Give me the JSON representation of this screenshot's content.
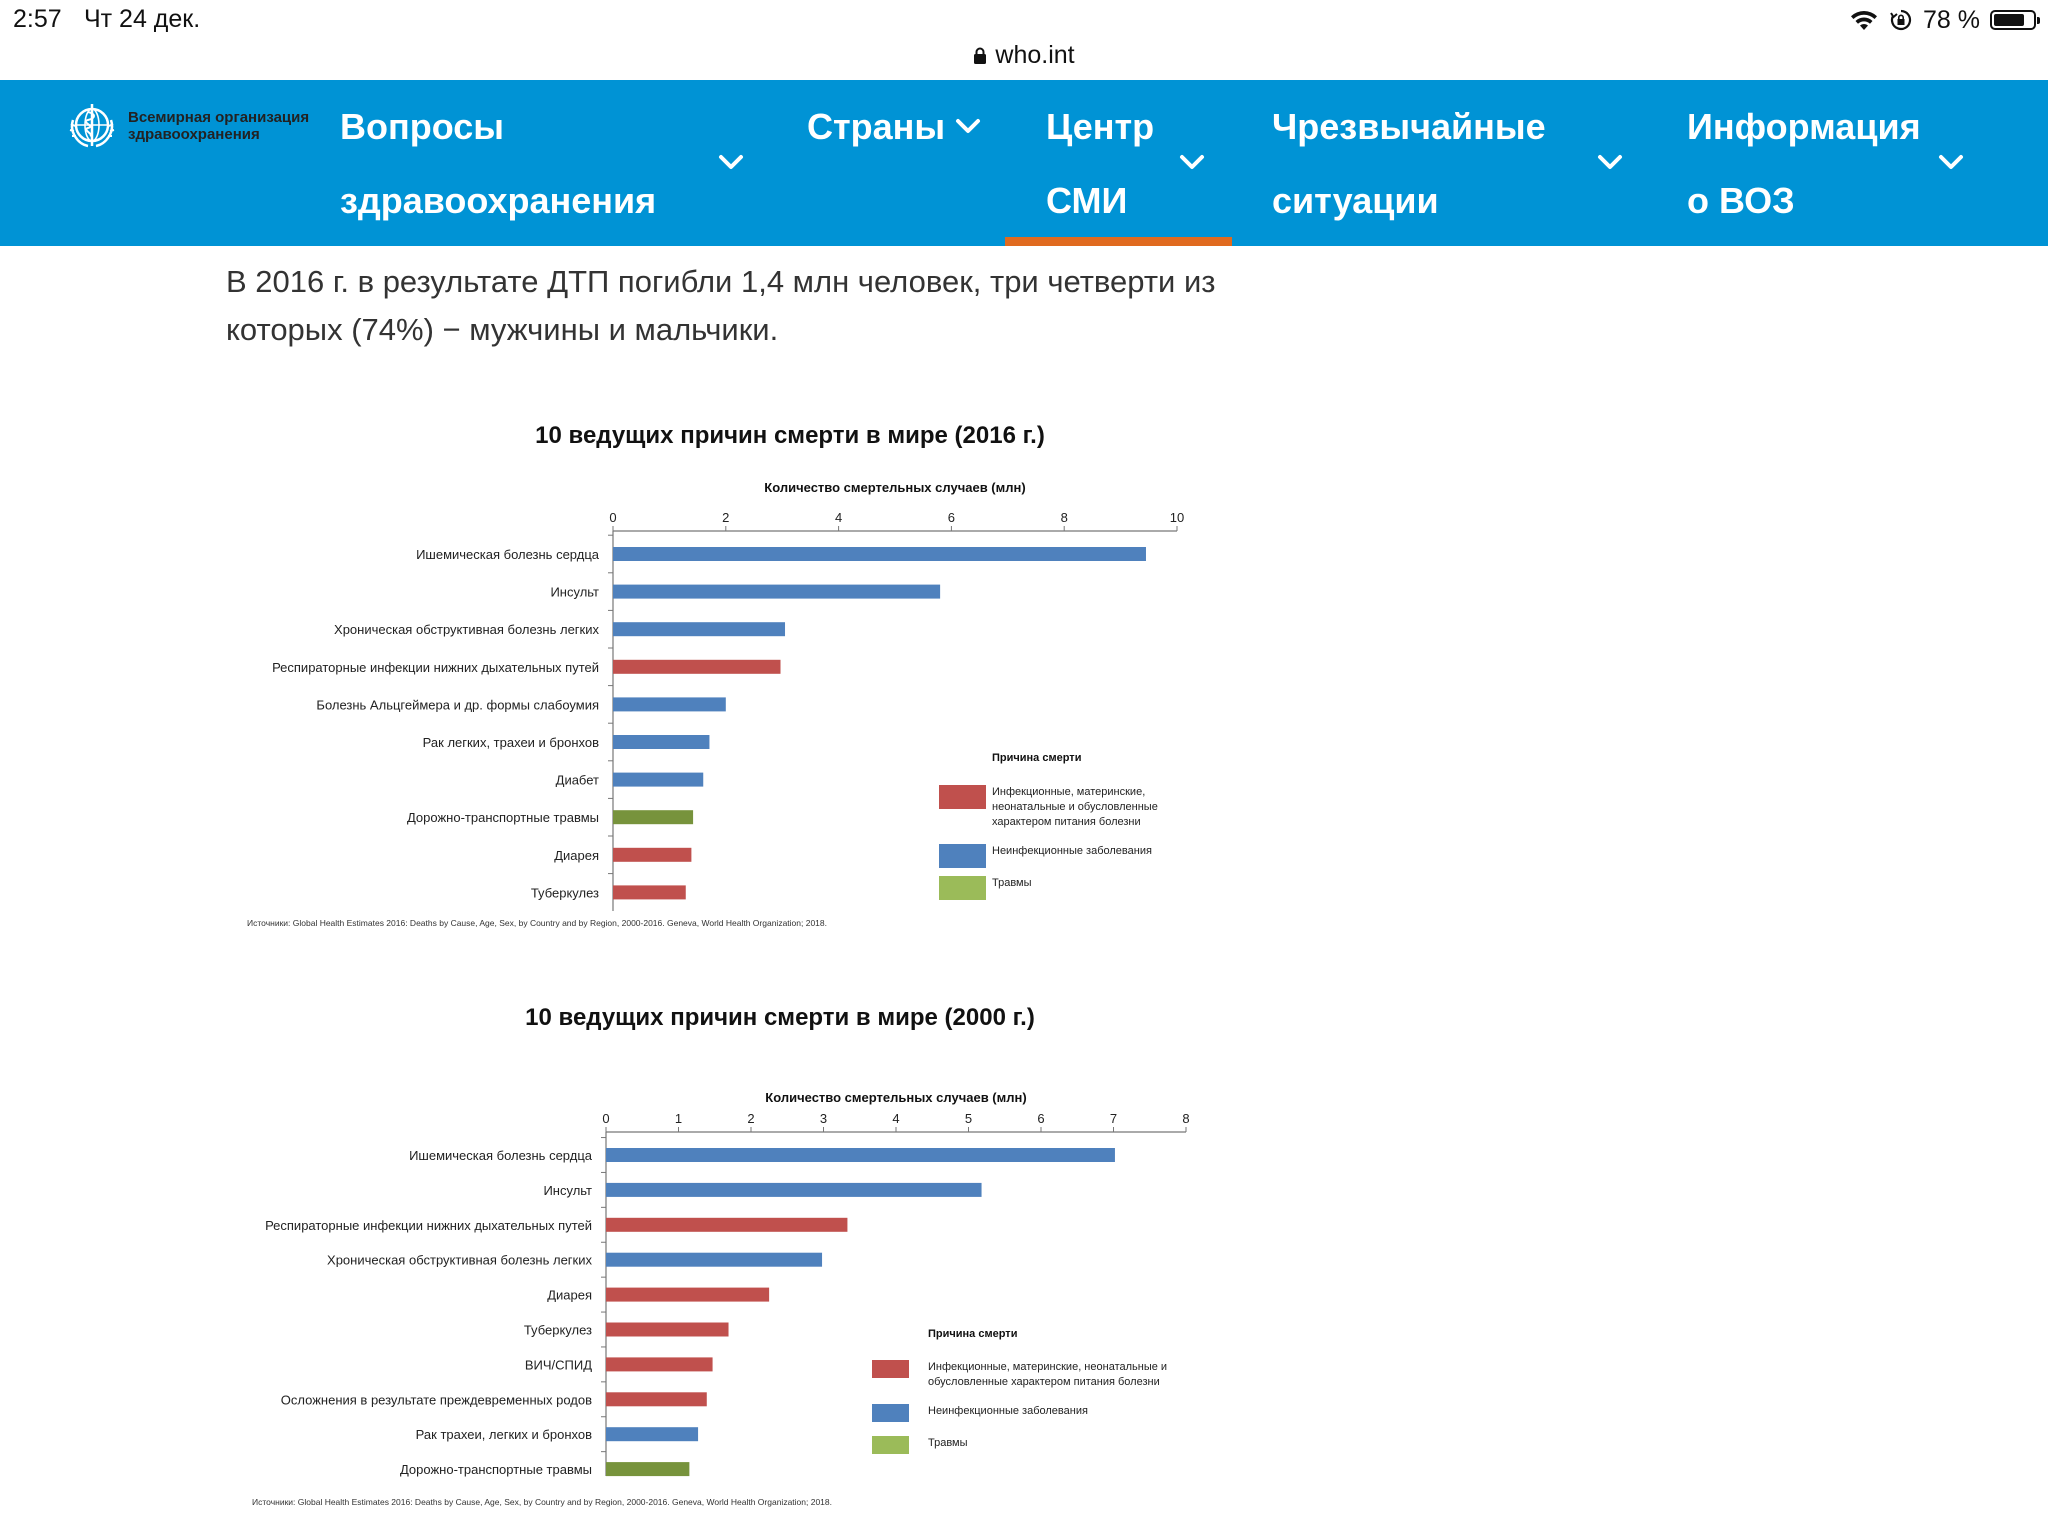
{
  "status_bar": {
    "time": "2:57",
    "date": "Чт 24 дек.",
    "battery": "78 %",
    "battery_level": 0.78
  },
  "url_bar": {
    "domain": "who.int"
  },
  "nav": {
    "logo_line1": "Всемирная организация",
    "logo_line2": "здравоохранения",
    "items": [
      {
        "line1": "Вопросы",
        "line2": "здравоохранения"
      },
      {
        "line1": "Страны",
        "line2": ""
      },
      {
        "line1": "Центр",
        "line2": "СМИ"
      },
      {
        "line1": "Чрезвычайные",
        "line2": "ситуации"
      },
      {
        "line1": "Информация",
        "line2": "о ВОЗ"
      }
    ],
    "active_index": 2
  },
  "intro": "В 2016 г. в результате ДТП погибли 1,4 млн человек, три четверти из которых (74%) − мужчины и мальчики.",
  "colors": {
    "infectious": "#c0504d",
    "noncommunicable": "#4f81bd",
    "injuries_2016": "#77933c",
    "injuries_legend": "#9bbb59",
    "nav_blue": "#0093d5",
    "active_orange": "#e06a1f"
  },
  "chart_data": [
    {
      "type": "bar",
      "orientation": "horizontal",
      "title": "10 ведущих причин смерти в мире (2016 г.)",
      "xlabel": "Количество смертельных случаев (млн)",
      "xlim": [
        0,
        10
      ],
      "ticks": [
        0,
        2,
        4,
        6,
        8,
        10
      ],
      "categories": [
        "Ишемическая болезнь сердца",
        "Инсульт",
        "Хроническая обструктивная болезнь легких",
        "Респираторные инфекции нижних дыхательных путей",
        "Болезнь Альцгеймера и др. формы слабоумия",
        "Рак легких, трахеи и бронхов",
        "Диабет",
        "Дорожно-транспортные травмы",
        "Диарея",
        "Туберкулез"
      ],
      "values": [
        9.45,
        5.8,
        3.05,
        2.97,
        2.0,
        1.71,
        1.6,
        1.42,
        1.39,
        1.29
      ],
      "groups": [
        "noncommunicable",
        "noncommunicable",
        "noncommunicable",
        "infectious",
        "noncommunicable",
        "noncommunicable",
        "noncommunicable",
        "injuries",
        "infectious",
        "infectious"
      ],
      "legend_title": "Причина смерти",
      "legend": [
        {
          "group": "infectious",
          "lines": [
            "Инфекционные, материнские,",
            "неонатальные и обусловленные",
            "характером питания болезни"
          ]
        },
        {
          "group": "noncommunicable",
          "lines": [
            "Неинфекционные заболевания"
          ]
        },
        {
          "group": "injuries",
          "lines": [
            "Травмы"
          ]
        }
      ],
      "source": "Источники: Global Health Estimates 2016: Deaths by Cause, Age, Sex, by Country and by Region, 2000-2016. Geneva, World Health Organization; 2018."
    },
    {
      "type": "bar",
      "orientation": "horizontal",
      "title": "10 ведущих причин смерти в мире (2000 г.)",
      "xlabel": "Количество смертельных случаев (млн)",
      "xlim": [
        0,
        8
      ],
      "ticks": [
        0,
        1,
        2,
        3,
        4,
        5,
        6,
        7,
        8
      ],
      "categories": [
        "Ишемическая болезнь сердца",
        "Инсульт",
        "Респираторные инфекции нижних дыхательных путей",
        "Хроническая обструктивная болезнь легких",
        "Диарея",
        "Туберкулез",
        "ВИЧ/СПИД",
        "Осложнения в результате преждевременных родов",
        "Рак трахеи, легких и бронхов",
        "Дорожно-транспортные травмы"
      ],
      "values": [
        7.02,
        5.18,
        3.33,
        2.98,
        2.25,
        1.69,
        1.47,
        1.39,
        1.27,
        1.15
      ],
      "groups": [
        "noncommunicable",
        "noncommunicable",
        "infectious",
        "noncommunicable",
        "infectious",
        "infectious",
        "infectious",
        "infectious",
        "noncommunicable",
        "injuries"
      ],
      "legend_title": "Причина смерти",
      "legend": [
        {
          "group": "infectious",
          "lines": [
            "Инфекционные, материнские, неонатальные и",
            "обусловленные характером питания болезни"
          ]
        },
        {
          "group": "noncommunicable",
          "lines": [
            "Неинфекционные заболевания"
          ]
        },
        {
          "group": "injuries",
          "lines": [
            "Травмы"
          ]
        }
      ],
      "source": "Источники: Global Health Estimates 2016: Deaths by Cause, Age, Sex, by Country and by Region, 2000-2016. Geneva, World Health Organization; 2018."
    }
  ]
}
